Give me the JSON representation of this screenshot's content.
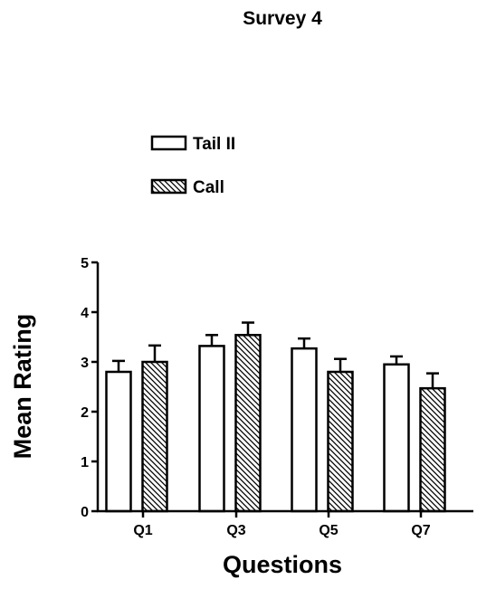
{
  "chart_data": {
    "type": "bar",
    "title": "Survey 4",
    "xlabel": "Questions",
    "ylabel": "Mean Rating",
    "categories": [
      "Q1",
      "Q3",
      "Q5",
      "Q7"
    ],
    "ylim": [
      0,
      5
    ],
    "yticks": [
      0,
      1,
      2,
      3,
      4,
      5
    ],
    "grid": false,
    "legend_position": "top-left",
    "series": [
      {
        "name": "Tail II",
        "fill": "open",
        "values": [
          2.8,
          3.32,
          3.27,
          2.95
        ],
        "errors": [
          0.22,
          0.22,
          0.2,
          0.16
        ]
      },
      {
        "name": "Call",
        "fill": "hatched",
        "values": [
          3.0,
          3.54,
          2.8,
          2.47
        ],
        "errors": [
          0.33,
          0.25,
          0.26,
          0.3
        ]
      }
    ],
    "colors": {
      "stroke": "#000000",
      "fill": "#ffffff"
    }
  }
}
